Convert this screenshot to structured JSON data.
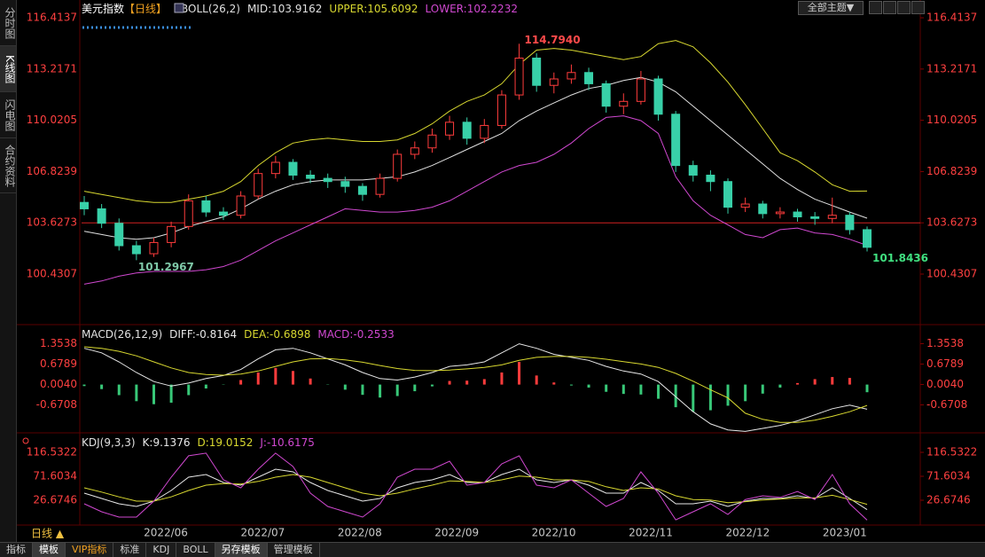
{
  "sidebar": [
    "分时图",
    "K线图",
    "闪电图",
    "合约资料"
  ],
  "theme_selector": "全部主题▼",
  "period_selector": "日线 ▲",
  "tabs": [
    "指标",
    "模板",
    "VIP指标",
    "标准",
    "KDJ",
    "BOLL",
    "另存模板",
    "管理模板"
  ],
  "chart_data": [
    {
      "type": "candlestick",
      "title": "美元指数",
      "period": "【日线】",
      "indicator": "BOLL(26,2)",
      "up_color": "#ff3c3c",
      "down_color": "#38d0a8",
      "open": [
        104.9,
        104.5,
        103.6,
        102.2,
        101.7,
        102.4,
        103.4,
        105.0,
        104.3,
        104.1,
        105.3,
        106.7,
        107.4,
        106.6,
        106.4,
        106.2,
        105.9,
        105.4,
        106.4,
        107.9,
        108.3,
        109.1,
        109.9,
        108.9,
        109.7,
        111.6,
        113.9,
        112.2,
        112.6,
        113.0,
        112.3,
        110.9,
        111.2,
        112.6,
        110.4,
        107.2,
        106.6,
        106.2,
        104.6,
        104.8,
        104.2,
        104.3,
        104.0,
        103.9,
        104.1,
        103.2
      ],
      "high": [
        105.3,
        104.8,
        103.9,
        102.5,
        102.7,
        103.7,
        105.4,
        105.3,
        104.6,
        105.6,
        107.0,
        107.8,
        107.6,
        106.9,
        106.7,
        106.5,
        106.1,
        106.7,
        108.2,
        108.7,
        109.5,
        110.3,
        110.2,
        110.1,
        111.9,
        114.794,
        114.2,
        113.0,
        113.5,
        113.3,
        112.5,
        111.7,
        113.1,
        112.8,
        110.6,
        107.5,
        106.9,
        106.4,
        105.2,
        105.0,
        104.6,
        104.5,
        104.3,
        105.2,
        104.3,
        103.4
      ],
      "low": [
        104.1,
        103.3,
        101.9,
        101.2967,
        101.5,
        102.1,
        103.2,
        104.0,
        103.8,
        103.9,
        105.1,
        106.4,
        106.3,
        106.1,
        105.8,
        105.5,
        105.0,
        105.2,
        106.2,
        107.6,
        108.0,
        108.8,
        108.5,
        108.6,
        109.5,
        111.3,
        111.8,
        111.7,
        112.3,
        111.9,
        110.5,
        110.4,
        111.0,
        110.0,
        106.8,
        106.2,
        105.6,
        104.2,
        104.3,
        103.9,
        103.9,
        103.7,
        103.5,
        103.6,
        102.9,
        101.8436
      ],
      "close": [
        104.5,
        103.6,
        102.2,
        101.7,
        102.4,
        103.4,
        105.0,
        104.3,
        104.1,
        105.3,
        106.7,
        107.4,
        106.6,
        106.4,
        106.2,
        105.9,
        105.4,
        106.4,
        107.9,
        108.3,
        109.1,
        109.9,
        108.9,
        109.7,
        111.6,
        113.9,
        112.2,
        112.6,
        113.0,
        112.3,
        110.9,
        111.2,
        112.6,
        110.4,
        107.2,
        106.6,
        106.2,
        104.6,
        104.8,
        104.2,
        104.3,
        104.0,
        103.9,
        104.1,
        103.2,
        102.1
      ],
      "series": [
        {
          "name": "MID:",
          "color": "#e0e0e0",
          "values": [
            103.1,
            102.9,
            102.7,
            102.6,
            102.7,
            103.0,
            103.4,
            103.7,
            104.0,
            104.5,
            105.1,
            105.6,
            106.0,
            106.2,
            106.3,
            106.3,
            106.3,
            106.4,
            106.5,
            106.8,
            107.2,
            107.7,
            108.2,
            108.7,
            109.2,
            110.0,
            110.6,
            111.1,
            111.6,
            112.0,
            112.2,
            112.5,
            112.7,
            112.4,
            111.8,
            110.9,
            110.0,
            109.1,
            108.2,
            107.3,
            106.4,
            105.7,
            105.1,
            104.7,
            104.3,
            103.9162
          ]
        },
        {
          "name": "UPPER:",
          "color": "#d8d830",
          "values": [
            105.6,
            105.4,
            105.2,
            105.0,
            104.9,
            104.9,
            105.1,
            105.3,
            105.6,
            106.2,
            107.2,
            108.0,
            108.6,
            108.8,
            108.9,
            108.8,
            108.7,
            108.7,
            108.8,
            109.2,
            109.8,
            110.6,
            111.2,
            111.6,
            112.3,
            113.5,
            114.4,
            114.5,
            114.4,
            114.2,
            114.0,
            113.8,
            114.0,
            114.8,
            115.0,
            114.6,
            113.6,
            112.4,
            111.0,
            109.5,
            108.0,
            107.5,
            106.8,
            106.0,
            105.6,
            105.6092
          ]
        },
        {
          "name": "LOWER:",
          "color": "#d048d0",
          "values": [
            99.8,
            100.0,
            100.3,
            100.5,
            100.6,
            100.6,
            100.6,
            100.7,
            100.9,
            101.3,
            101.9,
            102.5,
            103.0,
            103.5,
            104.0,
            104.5,
            104.4,
            104.3,
            104.3,
            104.4,
            104.6,
            105.0,
            105.6,
            106.2,
            106.8,
            107.2,
            107.4,
            107.9,
            108.6,
            109.5,
            110.2,
            110.3,
            110.0,
            109.2,
            106.5,
            105.0,
            104.1,
            103.5,
            102.9,
            102.7,
            103.2,
            103.3,
            103.0,
            102.9,
            102.6,
            102.2232
          ]
        }
      ],
      "ylim": [
        97.5,
        117.08
      ],
      "yticks": [
        116.4137,
        113.2171,
        110.0205,
        106.8239,
        103.6273,
        100.4307
      ],
      "reference_line": 103.6273,
      "reference_color": "#d02020",
      "tick_color": "#ff4040",
      "annotations": [
        {
          "text": "114.7940",
          "color": "#ff4a4a"
        },
        {
          "text": "101.2967",
          "color": "#7fc8a8"
        },
        {
          "text": "101.8436",
          "color": "#40e080"
        }
      ],
      "xlabels": [
        "2022/06",
        "2022/07",
        "2022/08",
        "2022/09",
        "2022/10",
        "2022/11",
        "2022/12",
        "2023/01"
      ]
    },
    {
      "type": "macd",
      "indicator": "MACD(26,12,9)",
      "tick_color": "#ff4040",
      "series": [
        {
          "name": "DIFF:",
          "color": "#e8e8e8",
          "values": [
            1.2,
            1.05,
            0.75,
            0.4,
            0.1,
            -0.05,
            0.05,
            0.2,
            0.3,
            0.5,
            0.85,
            1.15,
            1.2,
            1.05,
            0.85,
            0.65,
            0.4,
            0.2,
            0.15,
            0.25,
            0.4,
            0.6,
            0.65,
            0.75,
            1.05,
            1.35,
            1.2,
            1.0,
            0.9,
            0.8,
            0.6,
            0.45,
            0.35,
            0.1,
            -0.4,
            -0.9,
            -1.3,
            -1.5,
            -1.55,
            -1.45,
            -1.35,
            -1.2,
            -1.0,
            -0.8,
            -0.68,
            -0.8164
          ]
        },
        {
          "name": "DEA:",
          "color": "#d8d830",
          "values": [
            1.25,
            1.2,
            1.1,
            0.95,
            0.75,
            0.55,
            0.4,
            0.33,
            0.31,
            0.35,
            0.45,
            0.6,
            0.75,
            0.85,
            0.86,
            0.82,
            0.74,
            0.63,
            0.53,
            0.47,
            0.46,
            0.48,
            0.52,
            0.57,
            0.65,
            0.8,
            0.9,
            0.93,
            0.93,
            0.9,
            0.84,
            0.76,
            0.68,
            0.57,
            0.37,
            0.11,
            -0.17,
            -0.44,
            -0.95,
            -1.15,
            -1.25,
            -1.25,
            -1.18,
            -1.05,
            -0.9,
            -0.6898
          ]
        },
        {
          "name": "MACD:",
          "type": "bar",
          "color": "#d048d0",
          "up_color": "#ff3c3c",
          "down_color": "#38c878",
          "values": [
            -0.05,
            -0.15,
            -0.35,
            -0.55,
            -0.65,
            -0.6,
            -0.35,
            -0.13,
            -0.01,
            0.15,
            0.4,
            0.55,
            0.45,
            0.2,
            -0.01,
            -0.17,
            -0.34,
            -0.43,
            -0.38,
            -0.22,
            -0.06,
            0.12,
            0.13,
            0.18,
            0.4,
            0.75,
            0.3,
            0.07,
            -0.03,
            -0.1,
            -0.24,
            -0.31,
            -0.33,
            -0.47,
            -0.75,
            -0.9,
            -0.85,
            -0.7,
            -0.55,
            -0.3,
            -0.1,
            0.05,
            0.18,
            0.25,
            0.22,
            -0.2533
          ]
        }
      ],
      "ylim": [
        -1.656,
        1.573
      ],
      "yticks": [
        1.3538,
        0.6789,
        {
          "value": 0.004,
          "label": "0.0040"
        },
        -0.6708
      ]
    },
    {
      "type": "line",
      "indicator": "KDJ(9,3,3)",
      "tick_color": "#ff4040",
      "series": [
        {
          "name": "K:",
          "color": "#e8e8e8",
          "values": [
            40,
            30,
            20,
            15,
            25,
            45,
            70,
            75,
            60,
            55,
            70,
            85,
            80,
            60,
            45,
            35,
            25,
            30,
            50,
            60,
            65,
            75,
            60,
            60,
            75,
            85,
            65,
            60,
            65,
            55,
            40,
            40,
            60,
            45,
            20,
            20,
            25,
            15,
            25,
            30,
            30,
            35,
            30,
            50,
            30,
            9.1376
          ]
        },
        {
          "name": "D:",
          "color": "#d8d830",
          "values": [
            50,
            42,
            33,
            25,
            25,
            33,
            45,
            55,
            58,
            57,
            62,
            70,
            75,
            70,
            60,
            50,
            40,
            35,
            40,
            48,
            55,
            63,
            62,
            60,
            65,
            72,
            70,
            65,
            65,
            62,
            52,
            45,
            50,
            48,
            35,
            28,
            27,
            22,
            24,
            27,
            29,
            31,
            31,
            36,
            28,
            19.0152
          ]
        },
        {
          "name": "J:",
          "color": "#d048d0",
          "values": [
            20,
            5,
            -5,
            -5,
            25,
            70,
            110,
            115,
            65,
            50,
            85,
            115,
            90,
            40,
            15,
            5,
            -5,
            20,
            70,
            85,
            85,
            100,
            55,
            60,
            95,
            110,
            55,
            50,
            65,
            40,
            15,
            30,
            80,
            40,
            -10,
            5,
            20,
            0,
            28,
            35,
            32,
            43,
            28,
            75,
            20,
            -10.6175
          ]
        }
      ],
      "ylim": [
        -19.9,
        133.2
      ],
      "yticks": [
        116.5322,
        71.6034,
        26.6746
      ]
    }
  ]
}
